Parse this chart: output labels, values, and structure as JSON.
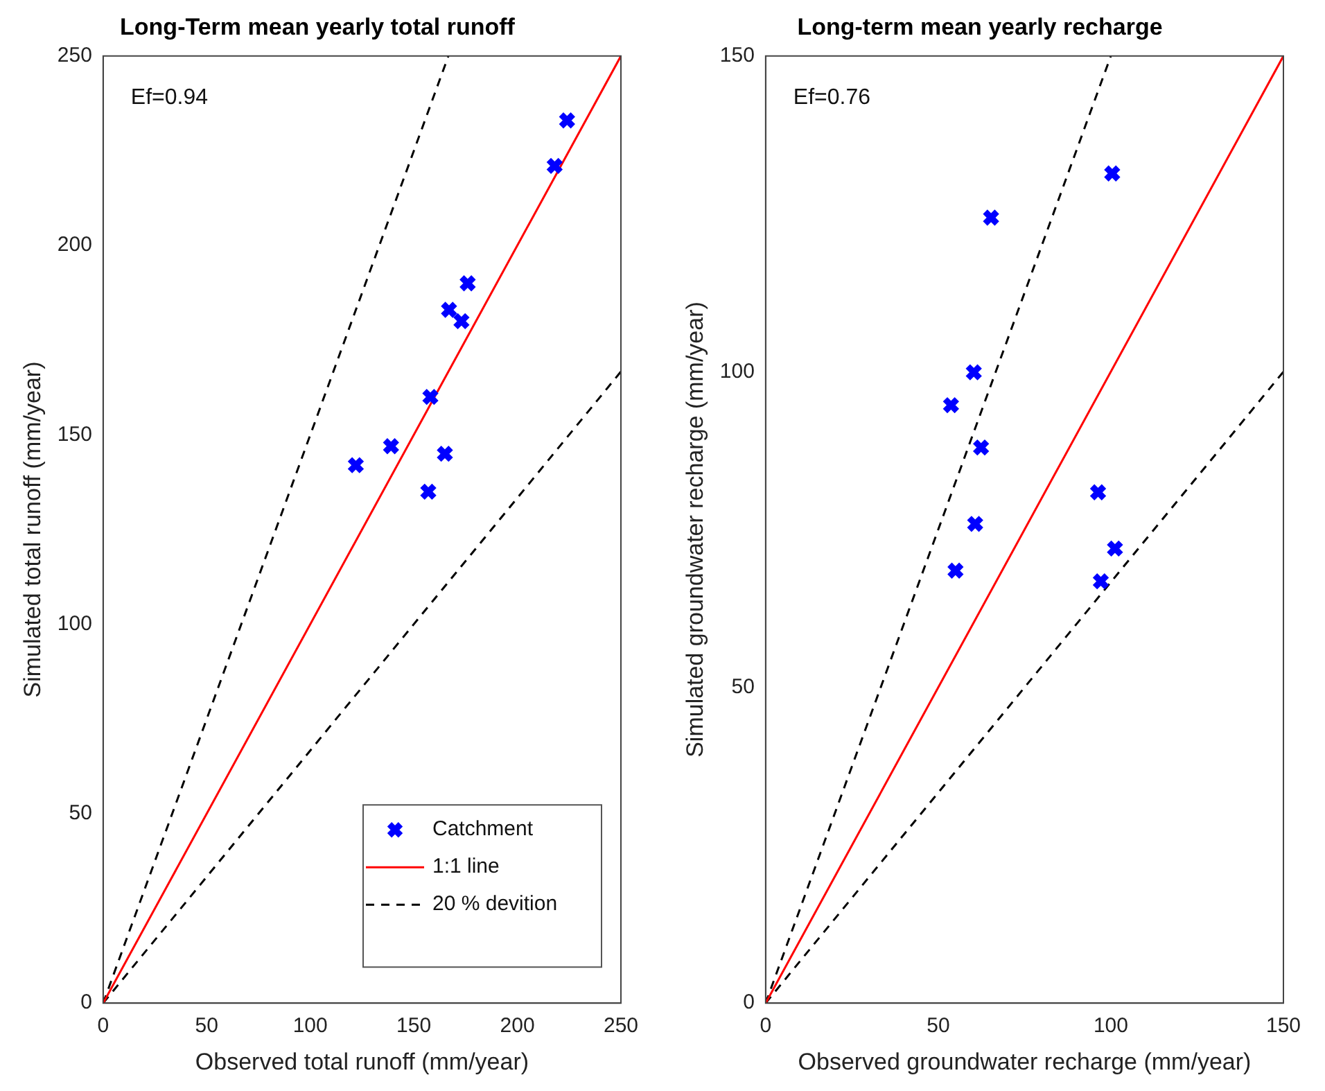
{
  "chart_data": [
    {
      "type": "scatter",
      "title": "Long-Term mean yearly total runoff",
      "xlabel": "Observed total runoff (mm/year)",
      "ylabel": "Simulated total runoff (mm/year)",
      "xlim": [
        0,
        250
      ],
      "ylim": [
        0,
        250
      ],
      "xticks": [
        0,
        50,
        100,
        150,
        200,
        250
      ],
      "yticks": [
        0,
        50,
        100,
        150,
        200,
        250
      ],
      "grid": false,
      "legend": "bottom right",
      "annotations": [
        "Ef=0.94"
      ],
      "series": [
        {
          "name": "Catchment",
          "marker": "cross",
          "color": "#0000ff",
          "x": [
            122,
            139,
            157,
            158,
            165,
            167,
            173,
            176,
            218,
            224
          ],
          "values": [
            142,
            147,
            135,
            160,
            145,
            183,
            180,
            190,
            221,
            233
          ]
        },
        {
          "name": "1:1 line",
          "type": "line",
          "marker": "none",
          "color": "#ff0000",
          "x": [
            0,
            250
          ],
          "values": [
            0,
            250
          ]
        },
        {
          "name": "20 % devition",
          "type": "line",
          "marker": "none",
          "line_style": "dashed",
          "color": "#000000",
          "x": [
            0,
            166.7
          ],
          "values": [
            0,
            250
          ]
        },
        {
          "type": "line",
          "marker": "none",
          "line_style": "dashed",
          "color": "#000000",
          "x": [
            0,
            250
          ],
          "values": [
            0,
            166.7
          ]
        }
      ]
    },
    {
      "type": "scatter",
      "title": "Long-term mean yearly recharge",
      "xlabel": "Observed groundwater recharge (mm/year)",
      "ylabel": "Simulated groundwater recharge (mm/year)",
      "xlim": [
        0,
        150
      ],
      "ylim": [
        0,
        150
      ],
      "xticks": [
        0,
        50,
        100,
        150
      ],
      "yticks": [
        0,
        50,
        100,
        150
      ],
      "grid": false,
      "legend": false,
      "annotations": [
        "Ef=0.76"
      ],
      "series": [
        {
          "marker": "cross",
          "color": "#0000ff",
          "x": [
            100.4,
            65.3,
            60.3,
            53.7,
            62.4,
            60.7,
            55,
            96.3,
            101.2,
            97.1
          ],
          "values": [
            131.4,
            124.4,
            99.9,
            94.7,
            88,
            75.9,
            68.5,
            80.9,
            72,
            66.8
          ]
        },
        {
          "type": "line",
          "marker": "none",
          "color": "#ff0000",
          "x": [
            0,
            150
          ],
          "values": [
            0,
            150
          ]
        },
        {
          "type": "line",
          "marker": "none",
          "line_style": "dashed",
          "color": "#000000",
          "x": [
            0,
            100
          ],
          "values": [
            0,
            150
          ]
        },
        {
          "type": "line",
          "marker": "none",
          "line_style": "dashed",
          "color": "#000000",
          "x": [
            0,
            150
          ],
          "values": [
            0,
            100
          ]
        }
      ]
    }
  ]
}
